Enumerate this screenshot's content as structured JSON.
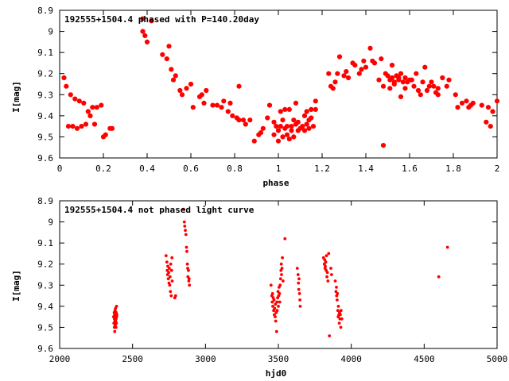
{
  "chart_data": [
    {
      "type": "scatter",
      "title": "192555+1504.4 phased with P=140.20day",
      "xlabel": "phase",
      "ylabel": "I[mag]",
      "xlim": [
        0,
        2
      ],
      "ylim": [
        8.9,
        9.6
      ],
      "y_inverted": true,
      "grid": false,
      "marker_color": "#ff0000",
      "x_ticks": [
        0,
        0.2,
        0.4,
        0.6,
        0.8,
        1,
        1.2,
        1.4,
        1.6,
        1.8,
        2
      ],
      "x_tick_labels": [
        "0",
        "0.2",
        "0.4",
        "0.6",
        "0.8",
        "1",
        "1.2",
        "1.4",
        "1.6",
        "1.8",
        "2"
      ],
      "y_ticks": [
        8.9,
        9.0,
        9.1,
        9.2,
        9.3,
        9.4,
        9.5,
        9.6
      ],
      "y_tick_labels": [
        "8.9",
        "9",
        "9.1",
        "9.2",
        "9.3",
        "9.4",
        "9.5",
        "9.6"
      ],
      "points": [
        [
          0.02,
          9.22
        ],
        [
          0.03,
          9.26
        ],
        [
          0.04,
          9.45
        ],
        [
          0.05,
          9.3
        ],
        [
          0.06,
          9.45
        ],
        [
          0.07,
          9.32
        ],
        [
          0.08,
          9.46
        ],
        [
          0.09,
          9.33
        ],
        [
          0.1,
          9.45
        ],
        [
          0.11,
          9.34
        ],
        [
          0.12,
          9.44
        ],
        [
          0.13,
          9.38
        ],
        [
          0.14,
          9.4
        ],
        [
          0.15,
          9.36
        ],
        [
          0.16,
          9.44
        ],
        [
          0.17,
          9.36
        ],
        [
          0.19,
          9.35
        ],
        [
          0.2,
          9.5
        ],
        [
          0.21,
          9.49
        ],
        [
          0.23,
          9.46
        ],
        [
          0.24,
          9.46
        ],
        [
          0.38,
          8.94
        ],
        [
          0.38,
          9.0
        ],
        [
          0.39,
          9.02
        ],
        [
          0.4,
          9.05
        ],
        [
          0.42,
          8.95
        ],
        [
          0.47,
          9.11
        ],
        [
          0.49,
          9.13
        ],
        [
          0.5,
          9.07
        ],
        [
          0.51,
          9.18
        ],
        [
          0.52,
          9.23
        ],
        [
          0.53,
          9.21
        ],
        [
          0.55,
          9.28
        ],
        [
          0.56,
          9.3
        ],
        [
          0.58,
          9.27
        ],
        [
          0.6,
          9.25
        ],
        [
          0.61,
          9.36
        ],
        [
          0.64,
          9.31
        ],
        [
          0.65,
          9.3
        ],
        [
          0.66,
          9.34
        ],
        [
          0.67,
          9.28
        ],
        [
          0.7,
          9.35
        ],
        [
          0.72,
          9.35
        ],
        [
          0.74,
          9.36
        ],
        [
          0.75,
          9.33
        ],
        [
          0.77,
          9.38
        ],
        [
          0.78,
          9.34
        ],
        [
          0.79,
          9.4
        ],
        [
          0.81,
          9.41
        ],
        [
          0.82,
          9.26
        ],
        [
          0.82,
          9.42
        ],
        [
          0.84,
          9.42
        ],
        [
          0.85,
          9.44
        ],
        [
          0.87,
          9.42
        ],
        [
          0.89,
          9.52
        ],
        [
          0.91,
          9.49
        ],
        [
          0.92,
          9.48
        ],
        [
          0.93,
          9.46
        ],
        [
          0.95,
          9.41
        ],
        [
          0.96,
          9.35
        ],
        [
          0.98,
          9.49
        ],
        [
          0.98,
          9.43
        ],
        [
          0.99,
          9.45
        ],
        [
          1.0,
          9.52
        ],
        [
          1.0,
          9.47
        ],
        [
          1.01,
          9.45
        ],
        [
          1.01,
          9.38
        ],
        [
          1.02,
          9.5
        ],
        [
          1.02,
          9.42
        ],
        [
          1.03,
          9.37
        ],
        [
          1.03,
          9.46
        ],
        [
          1.04,
          9.45
        ],
        [
          1.04,
          9.49
        ],
        [
          1.05,
          9.37
        ],
        [
          1.05,
          9.51
        ],
        [
          1.06,
          9.45
        ],
        [
          1.06,
          9.47
        ],
        [
          1.07,
          9.42
        ],
        [
          1.07,
          9.5
        ],
        [
          1.08,
          9.44
        ],
        [
          1.08,
          9.34
        ],
        [
          1.09,
          9.47
        ],
        [
          1.09,
          9.43
        ],
        [
          1.1,
          9.46
        ],
        [
          1.11,
          9.45
        ],
        [
          1.12,
          9.4
        ],
        [
          1.12,
          9.47
        ],
        [
          1.13,
          9.44
        ],
        [
          1.13,
          9.38
        ],
        [
          1.14,
          9.42
        ],
        [
          1.14,
          9.46
        ],
        [
          1.15,
          9.37
        ],
        [
          1.15,
          9.41
        ],
        [
          1.16,
          9.45
        ],
        [
          1.17,
          9.33
        ],
        [
          1.17,
          9.37
        ],
        [
          1.23,
          9.2
        ],
        [
          1.24,
          9.26
        ],
        [
          1.25,
          9.27
        ],
        [
          1.26,
          9.24
        ],
        [
          1.27,
          9.2
        ],
        [
          1.28,
          9.12
        ],
        [
          1.3,
          9.21
        ],
        [
          1.31,
          9.19
        ],
        [
          1.32,
          9.22
        ],
        [
          1.34,
          9.15
        ],
        [
          1.35,
          9.16
        ],
        [
          1.37,
          9.2
        ],
        [
          1.38,
          9.18
        ],
        [
          1.39,
          9.14
        ],
        [
          1.4,
          9.17
        ],
        [
          1.42,
          9.08
        ],
        [
          1.43,
          9.14
        ],
        [
          1.44,
          9.15
        ],
        [
          1.46,
          9.23
        ],
        [
          1.47,
          9.13
        ],
        [
          1.48,
          9.26
        ],
        [
          1.48,
          9.54
        ],
        [
          1.49,
          9.2
        ],
        [
          1.5,
          9.21
        ],
        [
          1.51,
          9.23
        ],
        [
          1.51,
          9.27
        ],
        [
          1.52,
          9.16
        ],
        [
          1.52,
          9.22
        ],
        [
          1.53,
          9.24
        ],
        [
          1.53,
          9.25
        ],
        [
          1.54,
          9.21
        ],
        [
          1.55,
          9.23
        ],
        [
          1.55,
          9.22
        ],
        [
          1.56,
          9.2
        ],
        [
          1.56,
          9.31
        ],
        [
          1.57,
          9.24
        ],
        [
          1.58,
          9.22
        ],
        [
          1.58,
          9.27
        ],
        [
          1.59,
          9.24
        ],
        [
          1.6,
          9.23
        ],
        [
          1.61,
          9.23
        ],
        [
          1.62,
          9.26
        ],
        [
          1.63,
          9.2
        ],
        [
          1.64,
          9.28
        ],
        [
          1.65,
          9.3
        ],
        [
          1.66,
          9.24
        ],
        [
          1.67,
          9.17
        ],
        [
          1.68,
          9.28
        ],
        [
          1.69,
          9.26
        ],
        [
          1.7,
          9.24
        ],
        [
          1.71,
          9.26
        ],
        [
          1.72,
          9.29
        ],
        [
          1.73,
          9.27
        ],
        [
          1.73,
          9.3
        ],
        [
          1.75,
          9.22
        ],
        [
          1.77,
          9.26
        ],
        [
          1.78,
          9.23
        ],
        [
          1.81,
          9.3
        ],
        [
          1.82,
          9.36
        ],
        [
          1.84,
          9.34
        ],
        [
          1.86,
          9.33
        ],
        [
          1.87,
          9.36
        ],
        [
          1.88,
          9.35
        ],
        [
          1.89,
          9.34
        ],
        [
          1.93,
          9.35
        ],
        [
          1.95,
          9.43
        ],
        [
          1.96,
          9.36
        ],
        [
          1.97,
          9.45
        ],
        [
          1.98,
          9.38
        ],
        [
          2.0,
          9.33
        ]
      ]
    },
    {
      "type": "scatter",
      "title": "192555+1504.4 not phased light curve",
      "xlabel": "hjd0",
      "ylabel": "I[mag]",
      "xlim": [
        2000,
        5000
      ],
      "ylim": [
        8.9,
        9.6
      ],
      "y_inverted": true,
      "grid": false,
      "marker_color": "#ff0000",
      "x_ticks": [
        2000,
        2500,
        3000,
        3500,
        4000,
        4500,
        5000
      ],
      "x_tick_labels": [
        "2000",
        "2500",
        "3000",
        "3500",
        "4000",
        "4500",
        "5000"
      ],
      "y_ticks": [
        8.9,
        9.0,
        9.1,
        9.2,
        9.3,
        9.4,
        9.5,
        9.6
      ],
      "y_tick_labels": [
        "8.9",
        "9",
        "9.1",
        "9.2",
        "9.3",
        "9.4",
        "9.5",
        "9.6"
      ],
      "points": [
        [
          2370,
          9.45
        ],
        [
          2372,
          9.48
        ],
        [
          2374,
          9.43
        ],
        [
          2375,
          9.5
        ],
        [
          2376,
          9.46
        ],
        [
          2377,
          9.44
        ],
        [
          2378,
          9.52
        ],
        [
          2379,
          9.47
        ],
        [
          2380,
          9.42
        ],
        [
          2381,
          9.49
        ],
        [
          2382,
          9.45
        ],
        [
          2383,
          9.41
        ],
        [
          2384,
          9.47
        ],
        [
          2385,
          9.44
        ],
        [
          2386,
          9.5
        ],
        [
          2387,
          9.46
        ],
        [
          2388,
          9.43
        ],
        [
          2389,
          9.48
        ],
        [
          2390,
          9.4
        ],
        [
          2391,
          9.45
        ],
        [
          2392,
          9.44
        ],
        [
          2730,
          9.16
        ],
        [
          2735,
          9.19
        ],
        [
          2738,
          9.23
        ],
        [
          2740,
          9.25
        ],
        [
          2742,
          9.21
        ],
        [
          2745,
          9.27
        ],
        [
          2748,
          9.24
        ],
        [
          2750,
          9.29
        ],
        [
          2752,
          9.22
        ],
        [
          2755,
          9.3
        ],
        [
          2757,
          9.26
        ],
        [
          2760,
          9.33
        ],
        [
          2762,
          9.2
        ],
        [
          2765,
          9.35
        ],
        [
          2768,
          9.23
        ],
        [
          2770,
          9.17
        ],
        [
          2772,
          9.28
        ],
        [
          2790,
          9.36
        ],
        [
          2795,
          9.35
        ],
        [
          2850,
          8.94
        ],
        [
          2855,
          9.0
        ],
        [
          2858,
          9.02
        ],
        [
          2862,
          9.04
        ],
        [
          2866,
          9.06
        ],
        [
          2870,
          9.12
        ],
        [
          2873,
          9.14
        ],
        [
          2876,
          9.2
        ],
        [
          2878,
          9.22
        ],
        [
          2880,
          9.26
        ],
        [
          2883,
          9.23
        ],
        [
          2886,
          9.28
        ],
        [
          2888,
          9.27
        ],
        [
          2890,
          9.3
        ],
        [
          3450,
          9.3
        ],
        [
          3455,
          9.35
        ],
        [
          3458,
          9.38
        ],
        [
          3460,
          9.34
        ],
        [
          3462,
          9.4
        ],
        [
          3465,
          9.36
        ],
        [
          3468,
          9.42
        ],
        [
          3470,
          9.37
        ],
        [
          3472,
          9.44
        ],
        [
          3475,
          9.41
        ],
        [
          3478,
          9.45
        ],
        [
          3480,
          9.39
        ],
        [
          3482,
          9.47
        ],
        [
          3485,
          9.43
        ],
        [
          3488,
          9.52
        ],
        [
          3490,
          9.38
        ],
        [
          3492,
          9.42
        ],
        [
          3495,
          9.36
        ],
        [
          3498,
          9.33
        ],
        [
          3500,
          9.4
        ],
        [
          3502,
          9.35
        ],
        [
          3505,
          9.31
        ],
        [
          3508,
          9.34
        ],
        [
          3510,
          9.38
        ],
        [
          3512,
          9.3
        ],
        [
          3515,
          9.27
        ],
        [
          3518,
          9.23
        ],
        [
          3520,
          9.2
        ],
        [
          3522,
          9.25
        ],
        [
          3525,
          9.22
        ],
        [
          3528,
          9.17
        ],
        [
          3532,
          9.28
        ],
        [
          3545,
          9.08
        ],
        [
          3630,
          9.22
        ],
        [
          3635,
          9.25
        ],
        [
          3638,
          9.29
        ],
        [
          3640,
          9.32
        ],
        [
          3642,
          9.27
        ],
        [
          3645,
          9.34
        ],
        [
          3648,
          9.37
        ],
        [
          3650,
          9.4
        ],
        [
          3810,
          9.17
        ],
        [
          3815,
          9.2
        ],
        [
          3818,
          9.18
        ],
        [
          3820,
          9.22
        ],
        [
          3822,
          9.21
        ],
        [
          3825,
          9.19
        ],
        [
          3828,
          9.23
        ],
        [
          3830,
          9.16
        ],
        [
          3833,
          9.26
        ],
        [
          3836,
          9.24
        ],
        [
          3840,
          9.28
        ],
        [
          3845,
          9.15
        ],
        [
          3850,
          9.54
        ],
        [
          3860,
          9.22
        ],
        [
          3865,
          9.25
        ],
        [
          3890,
          9.28
        ],
        [
          3895,
          9.33
        ],
        [
          3898,
          9.31
        ],
        [
          3900,
          9.35
        ],
        [
          3903,
          9.37
        ],
        [
          3905,
          9.34
        ],
        [
          3908,
          9.42
        ],
        [
          3910,
          9.45
        ],
        [
          3912,
          9.4
        ],
        [
          3915,
          9.44
        ],
        [
          3918,
          9.48
        ],
        [
          3920,
          9.43
        ],
        [
          3922,
          9.46
        ],
        [
          3925,
          9.44
        ],
        [
          3928,
          9.5
        ],
        [
          3930,
          9.42
        ],
        [
          3935,
          9.46
        ],
        [
          4600,
          9.26
        ],
        [
          4660,
          9.12
        ]
      ]
    }
  ]
}
